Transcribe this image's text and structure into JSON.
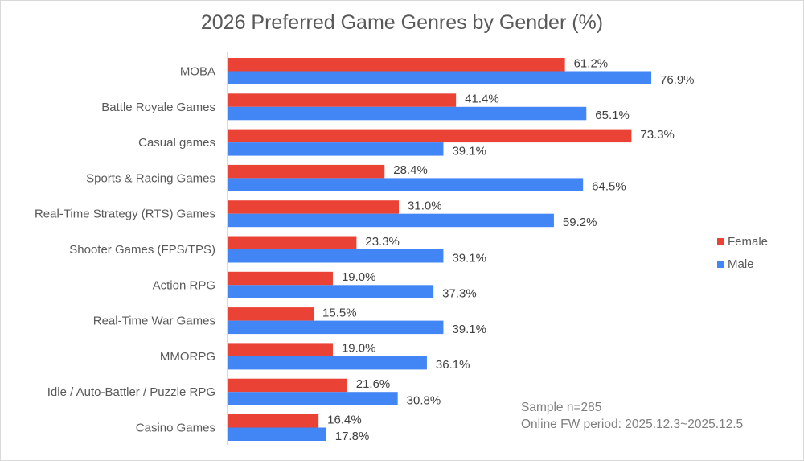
{
  "chart_data": {
    "type": "bar",
    "orientation": "horizontal",
    "title": "2026 Preferred Game Genres by Gender (%)",
    "xlabel": "",
    "ylabel": "",
    "xlim": [
      0,
      80
    ],
    "grid": false,
    "legend_position": "right",
    "categories": [
      "MOBA",
      "Battle Royale Games",
      "Casual games",
      "Sports & Racing Games",
      "Real-Time Strategy (RTS) Games",
      "Shooter Games (FPS/TPS)",
      "Action RPG",
      "Real-Time War Games",
      "MMORPG",
      "Idle / Auto-Battler / Puzzle RPG",
      "Casino Games"
    ],
    "series": [
      {
        "name": "Female",
        "color": "#ea4335",
        "values": [
          61.2,
          41.4,
          73.3,
          28.4,
          31.0,
          23.3,
          19.0,
          15.5,
          19.0,
          21.6,
          16.4
        ],
        "labels": [
          "61.2%",
          "41.4%",
          "73.3%",
          "28.4%",
          "31.0%",
          "23.3%",
          "19.0%",
          "15.5%",
          "19.0%",
          "21.6%",
          "16.4%"
        ]
      },
      {
        "name": "Male",
        "color": "#4285f4",
        "values": [
          76.9,
          65.1,
          39.1,
          64.5,
          59.2,
          39.1,
          37.3,
          39.1,
          36.1,
          30.8,
          17.8
        ],
        "labels": [
          "76.9%",
          "65.1%",
          "39.1%",
          "64.5%",
          "59.2%",
          "39.1%",
          "37.3%",
          "39.1%",
          "36.1%",
          "30.8%",
          "17.8%"
        ]
      }
    ],
    "annotations": [
      "Sample n=285",
      "Online FW period: 2025.12.3~2025.12.5"
    ]
  }
}
